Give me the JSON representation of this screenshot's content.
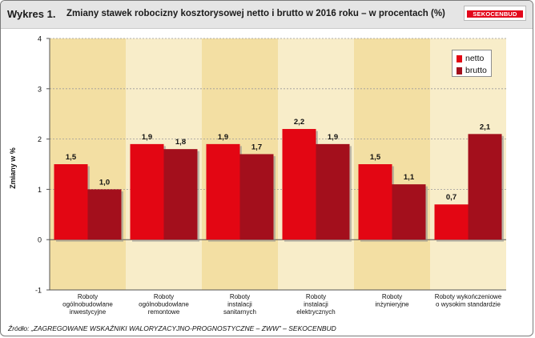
{
  "header": {
    "title_number": "Wykres 1.",
    "title_text": "Zmiany stawek robocizny kosztorysowej netto i brutto w 2016 roku – w procentach (%)",
    "logo_text": "SEKOCENBUD"
  },
  "source_text": "Źródło: „ZAGREGOWANE WSKAŹNIKI WALORYZACYJNO-PROGNOSTYCZNE – ZWW” – SEKOCENBUD",
  "colors": {
    "netto": "#e30613",
    "brutto": "#a30f1c",
    "band_light": "#f8edc9",
    "band_dark": "#f3dfa3",
    "logo_red": "#e3061b"
  },
  "chart_data": {
    "type": "bar",
    "ylabel": "Zmiany w %",
    "ylim": [
      -1,
      4
    ],
    "yticks": [
      -1,
      0,
      1,
      2,
      3,
      4
    ],
    "legend_position": "top-right",
    "categories": [
      [
        "Roboty",
        "ogólnobudowlane",
        "inwestycyjne"
      ],
      [
        "Roboty",
        "ogólnobudowlane",
        "remontowe"
      ],
      [
        "Roboty",
        "instalacji",
        "sanitarnych"
      ],
      [
        "Roboty",
        "instalacji",
        "elektrycznych"
      ],
      [
        "Roboty",
        "inżynieryjne"
      ],
      [
        "Roboty wykończeniowe",
        "o wysokim standardzie"
      ]
    ],
    "series": [
      {
        "name": "netto",
        "values": [
          1.5,
          1.9,
          1.9,
          2.2,
          1.5,
          0.7
        ],
        "labels": [
          "1,5",
          "1,9",
          "1,9",
          "2,2",
          "1,5",
          "0,7"
        ]
      },
      {
        "name": "brutto",
        "values": [
          1.0,
          1.8,
          1.7,
          1.9,
          1.1,
          2.1
        ],
        "labels": [
          "1,0",
          "1,8",
          "1,7",
          "1,9",
          "1,1",
          "2,1"
        ]
      }
    ]
  }
}
